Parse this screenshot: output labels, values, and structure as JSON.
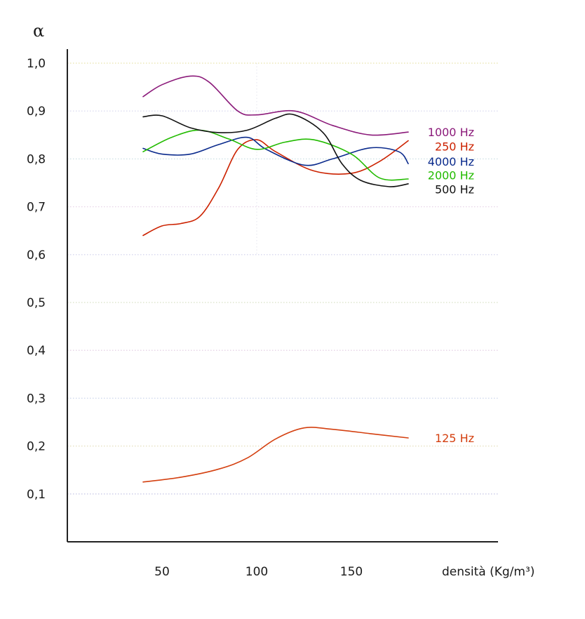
{
  "chart_data": {
    "type": "line",
    "ylabel": "α",
    "xlabel": "densità (Kg/m³)",
    "xlim": [
      0,
      225
    ],
    "ylim": [
      0,
      1.0
    ],
    "x_ticks": [
      50,
      100,
      150
    ],
    "y_ticks": [
      {
        "value": 0.1,
        "label": "0,1"
      },
      {
        "value": 0.2,
        "label": "0,2"
      },
      {
        "value": 0.3,
        "label": "0,3"
      },
      {
        "value": 0.4,
        "label": "0,4"
      },
      {
        "value": 0.5,
        "label": "0,5"
      },
      {
        "value": 0.6,
        "label": "0,6"
      },
      {
        "value": 0.7,
        "label": "0,7"
      },
      {
        "value": 0.8,
        "label": "0,8"
      },
      {
        "value": 0.9,
        "label": "0,9"
      },
      {
        "value": 1.0,
        "label": "1,0"
      }
    ],
    "grid": true,
    "grid_style": "dotted horizontal",
    "series": [
      {
        "name": "1000 Hz",
        "color": "#8b1a7a",
        "points": [
          [
            40,
            0.93
          ],
          [
            50,
            0.955
          ],
          [
            65,
            0.973
          ],
          [
            75,
            0.96
          ],
          [
            90,
            0.9
          ],
          [
            100,
            0.892
          ],
          [
            120,
            0.9
          ],
          [
            140,
            0.87
          ],
          [
            160,
            0.85
          ],
          [
            180,
            0.856
          ]
        ]
      },
      {
        "name": "250 Hz",
        "color": "#cc2200",
        "points": [
          [
            40,
            0.64
          ],
          [
            50,
            0.66
          ],
          [
            60,
            0.665
          ],
          [
            70,
            0.68
          ],
          [
            80,
            0.74
          ],
          [
            90,
            0.82
          ],
          [
            100,
            0.84
          ],
          [
            110,
            0.815
          ],
          [
            130,
            0.775
          ],
          [
            150,
            0.77
          ],
          [
            165,
            0.795
          ],
          [
            180,
            0.838
          ]
        ]
      },
      {
        "name": "4000 Hz",
        "color": "#0a2a8c",
        "points": [
          [
            40,
            0.822
          ],
          [
            50,
            0.81
          ],
          [
            65,
            0.81
          ],
          [
            80,
            0.83
          ],
          [
            95,
            0.845
          ],
          [
            105,
            0.82
          ],
          [
            125,
            0.787
          ],
          [
            140,
            0.8
          ],
          [
            160,
            0.823
          ],
          [
            175,
            0.815
          ],
          [
            180,
            0.79
          ]
        ]
      },
      {
        "name": "2000 Hz",
        "color": "#22bb00",
        "points": [
          [
            40,
            0.815
          ],
          [
            55,
            0.845
          ],
          [
            70,
            0.86
          ],
          [
            85,
            0.842
          ],
          [
            100,
            0.82
          ],
          [
            115,
            0.835
          ],
          [
            130,
            0.84
          ],
          [
            150,
            0.81
          ],
          [
            165,
            0.76
          ],
          [
            180,
            0.758
          ]
        ]
      },
      {
        "name": "500 Hz",
        "color": "#111111",
        "points": [
          [
            40,
            0.888
          ],
          [
            50,
            0.89
          ],
          [
            65,
            0.865
          ],
          [
            80,
            0.855
          ],
          [
            95,
            0.86
          ],
          [
            110,
            0.885
          ],
          [
            120,
            0.892
          ],
          [
            135,
            0.855
          ],
          [
            145,
            0.79
          ],
          [
            155,
            0.755
          ],
          [
            170,
            0.742
          ],
          [
            180,
            0.748
          ]
        ]
      },
      {
        "name": "125 Hz",
        "color": "#d44010",
        "points": [
          [
            40,
            0.125
          ],
          [
            60,
            0.135
          ],
          [
            80,
            0.152
          ],
          [
            95,
            0.175
          ],
          [
            110,
            0.215
          ],
          [
            125,
            0.238
          ],
          [
            140,
            0.235
          ],
          [
            160,
            0.226
          ],
          [
            180,
            0.217
          ]
        ]
      }
    ],
    "labels": [
      {
        "series": "1000 Hz",
        "text": "1000 Hz",
        "color": "#8b1a7a",
        "y": 0.856
      },
      {
        "series": "250 Hz",
        "text": "250 Hz",
        "color": "#cc2200",
        "y": 0.826
      },
      {
        "series": "4000 Hz",
        "text": "4000 Hz",
        "color": "#0a2a8c",
        "y": 0.795
      },
      {
        "series": "2000 Hz",
        "text": "2000 Hz",
        "color": "#22bb00",
        "y": 0.766
      },
      {
        "series": "500 Hz",
        "text": "500 Hz",
        "color": "#111111",
        "y": 0.737
      },
      {
        "series": "125 Hz",
        "text": "125 Hz",
        "color": "#d44010",
        "y": 0.217
      }
    ]
  }
}
